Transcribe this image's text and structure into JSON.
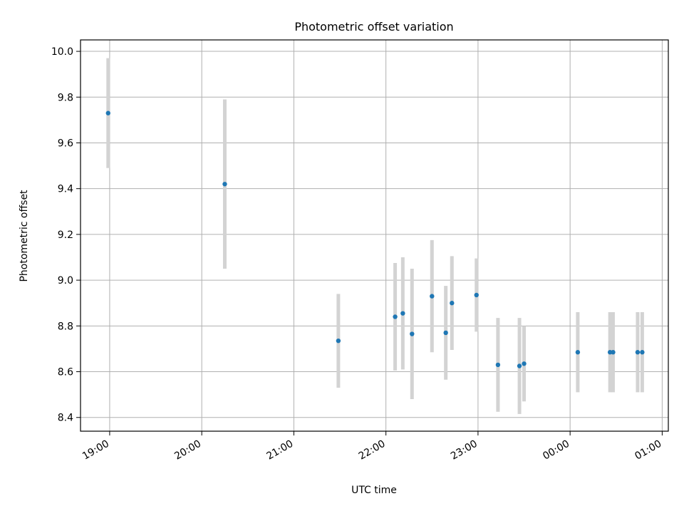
{
  "chart_data": {
    "type": "scatter",
    "title": "Photometric offset variation",
    "xlabel": "UTC time",
    "ylabel": "Photometric offset",
    "x_tick_labels": [
      "19:00",
      "20:00",
      "21:00",
      "22:00",
      "23:00",
      "00:00",
      "01:00"
    ],
    "y_tick_labels": [
      "8.4",
      "8.6",
      "8.8",
      "9.0",
      "9.2",
      "9.4",
      "9.6",
      "9.8",
      "10.0"
    ],
    "xlim": [
      "18:41",
      "01:04"
    ],
    "ylim": [
      8.34,
      10.05
    ],
    "grid": true,
    "marker_color": "#1f77b4",
    "errorbar_color": "#d3d3d3",
    "series": [
      {
        "points": [
          {
            "x": "18:59",
            "y": 9.73,
            "yerr": 0.24
          },
          {
            "x": "20:15",
            "y": 9.42,
            "yerr": 0.37
          },
          {
            "x": "21:29",
            "y": 8.735,
            "yerr": 0.205
          },
          {
            "x": "22:06",
            "y": 8.84,
            "yerr": 0.235
          },
          {
            "x": "22:11",
            "y": 8.855,
            "yerr": 0.245
          },
          {
            "x": "22:17",
            "y": 8.765,
            "yerr": 0.285
          },
          {
            "x": "22:30",
            "y": 8.93,
            "yerr": 0.245
          },
          {
            "x": "22:39",
            "y": 8.77,
            "yerr": 0.205
          },
          {
            "x": "22:43",
            "y": 8.9,
            "yerr": 0.205
          },
          {
            "x": "22:59",
            "y": 8.935,
            "yerr": 0.16
          },
          {
            "x": "23:13",
            "y": 8.63,
            "yerr": 0.205
          },
          {
            "x": "23:27",
            "y": 8.625,
            "yerr": 0.21
          },
          {
            "x": "23:30",
            "y": 8.635,
            "yerr": 0.165
          },
          {
            "x": "00:05",
            "y": 8.685,
            "yerr": 0.175
          },
          {
            "x": "00:26",
            "y": 8.685,
            "yerr": 0.175
          },
          {
            "x": "00:28",
            "y": 8.685,
            "yerr": 0.175
          },
          {
            "x": "00:44",
            "y": 8.685,
            "yerr": 0.175
          },
          {
            "x": "00:47",
            "y": 8.685,
            "yerr": 0.175
          }
        ]
      }
    ]
  }
}
